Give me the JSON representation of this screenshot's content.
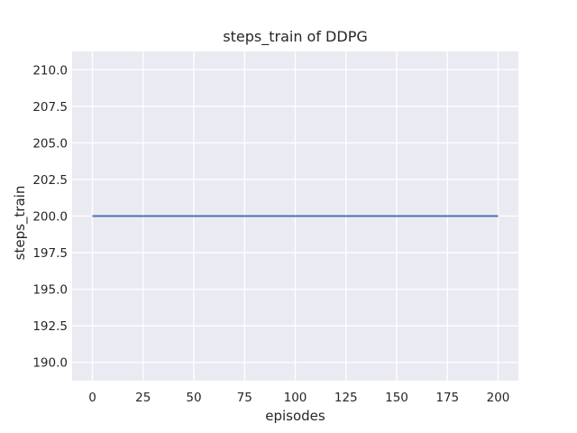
{
  "chart_data": {
    "type": "line",
    "title": "steps_train of DDPG",
    "xlabel": "episodes",
    "ylabel": "steps_train",
    "xlim": [
      -10,
      210
    ],
    "ylim": [
      188.75,
      211.25
    ],
    "xticks": {
      "values": [
        0,
        25,
        50,
        75,
        100,
        125,
        150,
        175,
        200
      ],
      "labels": [
        "0",
        "25",
        "50",
        "75",
        "100",
        "125",
        "150",
        "175",
        "200"
      ]
    },
    "yticks": {
      "values": [
        190.0,
        192.5,
        195.0,
        197.5,
        200.0,
        202.5,
        205.0,
        207.5,
        210.0
      ],
      "labels": [
        "190.0",
        "192.5",
        "195.0",
        "197.5",
        "200.0",
        "202.5",
        "205.0",
        "207.5",
        "210.0"
      ]
    },
    "grid": true,
    "legend": "none",
    "series": [
      {
        "name": "steps_train",
        "color": "#4c72b0",
        "linewidth": 2,
        "x": [
          0,
          200
        ],
        "y": [
          200,
          200
        ]
      }
    ],
    "colors": {
      "figure_background": "#ffffff",
      "plot_background": "#eaeaf2",
      "grid": "#ffffff",
      "text": "#262626"
    }
  }
}
